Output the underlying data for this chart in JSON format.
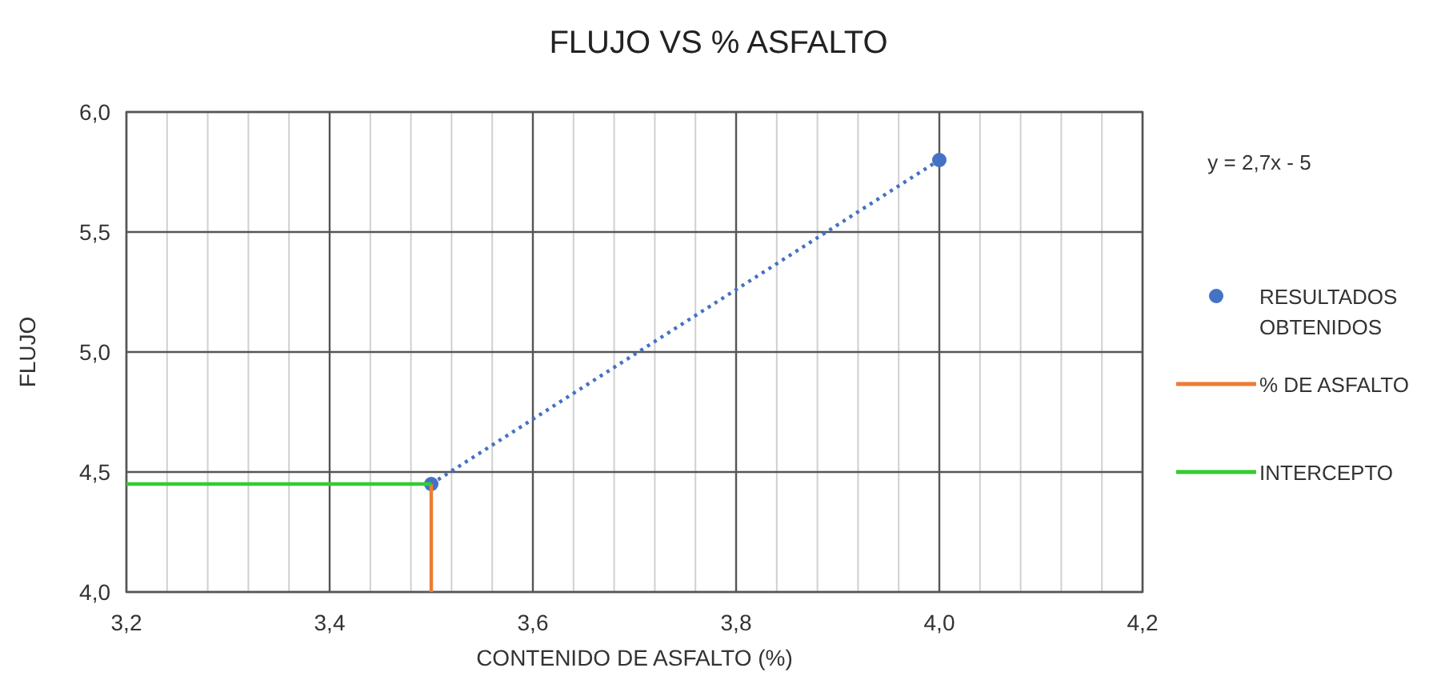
{
  "chart_data": {
    "type": "scatter",
    "title": "FLUJO VS % ASFALTO",
    "xlabel": "CONTENIDO  DE ASFALTO  (%)",
    "ylabel": "FLUJO",
    "annotations": [
      "y = 2,7x - 5"
    ],
    "xlim": [
      3.2,
      4.2
    ],
    "ylim": [
      4.0,
      6.0
    ],
    "xticks": [
      {
        "value": 3.2,
        "label": "3,2"
      },
      {
        "value": 3.24,
        "label": null
      },
      {
        "value": 3.28,
        "label": null
      },
      {
        "value": 3.32,
        "label": null
      },
      {
        "value": 3.36,
        "label": null
      },
      {
        "value": 3.4,
        "label": "3,4"
      },
      {
        "value": 3.44,
        "label": null
      },
      {
        "value": 3.48,
        "label": null
      },
      {
        "value": 3.52,
        "label": null
      },
      {
        "value": 3.56,
        "label": null
      },
      {
        "value": 3.6,
        "label": "3,6"
      },
      {
        "value": 3.64,
        "label": null
      },
      {
        "value": 3.68,
        "label": null
      },
      {
        "value": 3.72,
        "label": null
      },
      {
        "value": 3.76,
        "label": null
      },
      {
        "value": 3.8,
        "label": "3,8"
      },
      {
        "value": 3.84,
        "label": null
      },
      {
        "value": 3.88,
        "label": null
      },
      {
        "value": 3.92,
        "label": null
      },
      {
        "value": 3.96,
        "label": null
      },
      {
        "value": 4.0,
        "label": "4,0"
      },
      {
        "value": 4.04,
        "label": null
      },
      {
        "value": 4.08,
        "label": null
      },
      {
        "value": 4.12,
        "label": null
      },
      {
        "value": 4.16,
        "label": null
      },
      {
        "value": 4.2,
        "label": "4,2"
      }
    ],
    "yticks": [
      {
        "value": 4.0,
        "label": "4,0"
      },
      {
        "value": 4.5,
        "label": "4,5"
      },
      {
        "value": 5.0,
        "label": "5,0"
      },
      {
        "value": 5.5,
        "label": "5,5"
      },
      {
        "value": 6.0,
        "label": "6,0"
      }
    ],
    "grid": true,
    "legend": "right",
    "marker": "circle",
    "series": [
      {
        "type": "line",
        "color": "#4472c4",
        "line_style": "dotted",
        "marker": "none",
        "x": [
          3.5,
          4.0
        ],
        "values": [
          4.45,
          5.8
        ]
      },
      {
        "name": "RESULTADOS OBTENIDOS",
        "color": "#4472c4",
        "x": [
          3.5,
          4.0
        ],
        "values": [
          4.45,
          5.8
        ]
      },
      {
        "name": "% DE ASFALTO",
        "type": "line",
        "color": "#ed7d31",
        "line_style": "solid",
        "marker": "none",
        "x": [
          3.5,
          3.5
        ],
        "values": [
          4.0,
          4.45
        ]
      },
      {
        "name": "INTERCEPTO",
        "type": "line",
        "color": "#33cc33",
        "line_style": "solid",
        "marker": "none",
        "x": [
          3.2,
          3.5
        ],
        "values": [
          4.45,
          4.45
        ]
      }
    ]
  }
}
